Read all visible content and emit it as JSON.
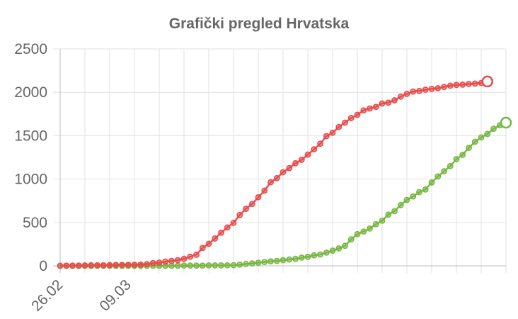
{
  "chart_data": {
    "type": "line",
    "title": "Grafički pregled Hrvatska",
    "xlabel": "",
    "ylabel": "",
    "x_tick_labels": [
      "26.02",
      "09.03"
    ],
    "y_ticks": [
      0,
      500,
      1000,
      1500,
      2000,
      2500
    ],
    "ylim": [
      0,
      2500
    ],
    "grid": true,
    "legend": "none",
    "series": [
      {
        "color": "#e84a4a",
        "values": [
          1,
          2,
          3,
          3,
          5,
          6,
          7,
          7,
          9,
          10,
          11,
          12,
          12,
          14,
          19,
          32,
          38,
          49,
          57,
          65,
          81,
          105,
          128,
          206,
          254,
          315,
          382,
          442,
          495,
          586,
          657,
          713,
          790,
          867,
          963,
          1011,
          1079,
          1126,
          1182,
          1222,
          1282,
          1343,
          1407,
          1495,
          1534,
          1600,
          1650,
          1704,
          1741,
          1791,
          1814,
          1832,
          1871,
          1881,
          1908,
          1950,
          1981,
          2009,
          2016,
          2030,
          2039,
          2047,
          2062,
          2076,
          2085,
          2088,
          2096,
          2101,
          2108,
          2125
        ]
      },
      {
        "color": "#76b640",
        "values": [
          0,
          0,
          0,
          0,
          0,
          0,
          0,
          0,
          0,
          0,
          0,
          0,
          0,
          0,
          1,
          1,
          1,
          1,
          1,
          1,
          3,
          3,
          3,
          3,
          5,
          5,
          5,
          6,
          8,
          14,
          22,
          28,
          36,
          44,
          52,
          57,
          65,
          73,
          81,
          95,
          104,
          121,
          131,
          152,
          175,
          201,
          231,
          305,
          365,
          395,
          430,
          480,
          520,
          590,
          630,
          700,
          760,
          800,
          850,
          880,
          960,
          1030,
          1090,
          1150,
          1230,
          1280,
          1360,
          1430,
          1480,
          1520,
          1580,
          1620,
          1650
        ]
      }
    ]
  }
}
